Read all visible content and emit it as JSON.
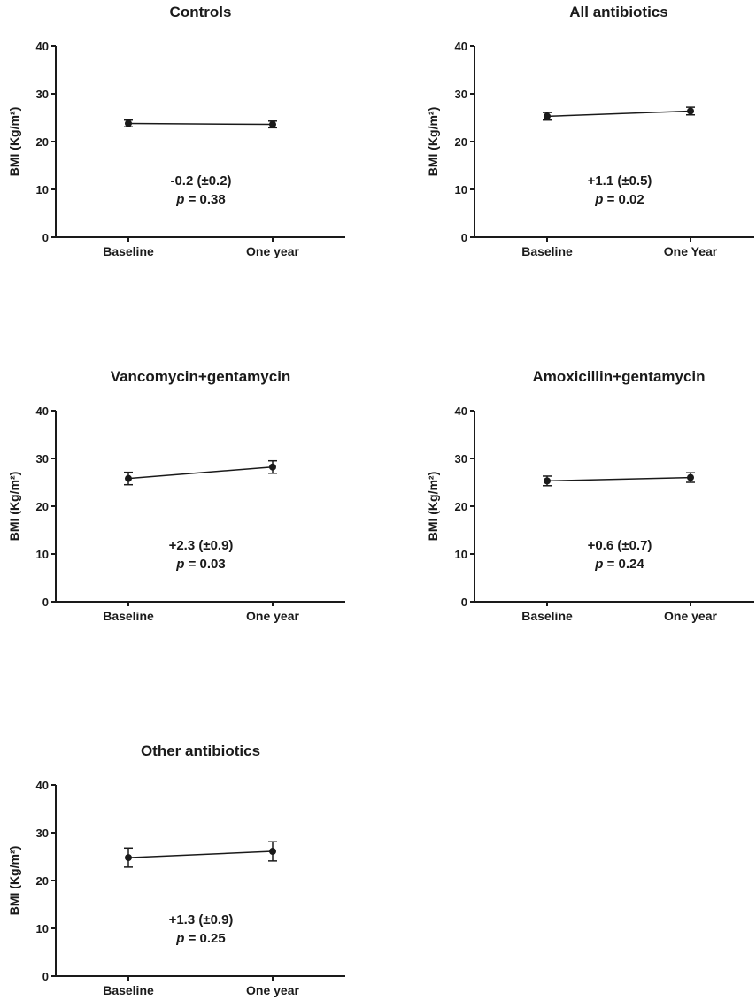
{
  "chart_data": [
    {
      "type": "line",
      "title": "Controls",
      "ylabel": "BMI (Kg/m²)",
      "xlabel": "",
      "categories": [
        "Baseline",
        "One year"
      ],
      "values": [
        23.8,
        23.6
      ],
      "error": [
        0.7,
        0.7
      ],
      "ylim": [
        0,
        40
      ],
      "yticks": [
        "0",
        "10",
        "20",
        "30",
        "40"
      ],
      "annotation": {
        "change": "-0.2 (±0.2)",
        "p_label": "p",
        "p_value": " = 0.38"
      }
    },
    {
      "type": "line",
      "title": "All antibiotics",
      "ylabel": "BMI (Kg/m²)",
      "xlabel": "",
      "categories": [
        "Baseline",
        "One Year"
      ],
      "values": [
        25.3,
        26.4
      ],
      "error": [
        0.8,
        0.8
      ],
      "ylim": [
        0,
        40
      ],
      "yticks": [
        "0",
        "10",
        "20",
        "30",
        "40"
      ],
      "annotation": {
        "change": "+1.1 (±0.5)",
        "p_label": "p",
        "p_value": " = 0.02"
      }
    },
    {
      "type": "line",
      "title": "Vancomycin+gentamycin",
      "ylabel": "BMI (Kg/m²)",
      "xlabel": "",
      "categories": [
        "Baseline",
        "One year"
      ],
      "values": [
        25.8,
        28.2
      ],
      "error": [
        1.3,
        1.3
      ],
      "ylim": [
        0,
        40
      ],
      "yticks": [
        "0",
        "10",
        "20",
        "30",
        "40"
      ],
      "annotation": {
        "change": "+2.3 (±0.9)",
        "p_label": "p",
        "p_value": " = 0.03"
      }
    },
    {
      "type": "line",
      "title": "Amoxicillin+gentamycin",
      "ylabel": "BMI (Kg/m²)",
      "xlabel": "",
      "categories": [
        "Baseline",
        "One year"
      ],
      "values": [
        25.3,
        26.0
      ],
      "error": [
        1.0,
        1.0
      ],
      "ylim": [
        0,
        40
      ],
      "yticks": [
        "0",
        "10",
        "20",
        "30",
        "40"
      ],
      "annotation": {
        "change": "+0.6 (±0.7)",
        "p_label": "p",
        "p_value": " = 0.24"
      }
    },
    {
      "type": "line",
      "title": "Other antibiotics",
      "ylabel": "BMI (Kg/m²)",
      "xlabel": "",
      "categories": [
        "Baseline",
        "One year"
      ],
      "values": [
        24.8,
        26.1
      ],
      "error": [
        2.0,
        2.0
      ],
      "ylim": [
        0,
        40
      ],
      "yticks": [
        "0",
        "10",
        "20",
        "30",
        "40"
      ],
      "annotation": {
        "change": "+1.3 (±0.9)",
        "p_label": "p",
        "p_value": " = 0.25"
      }
    }
  ],
  "colors": {
    "ink": "#1a1a1a",
    "background": "#ffffff"
  }
}
